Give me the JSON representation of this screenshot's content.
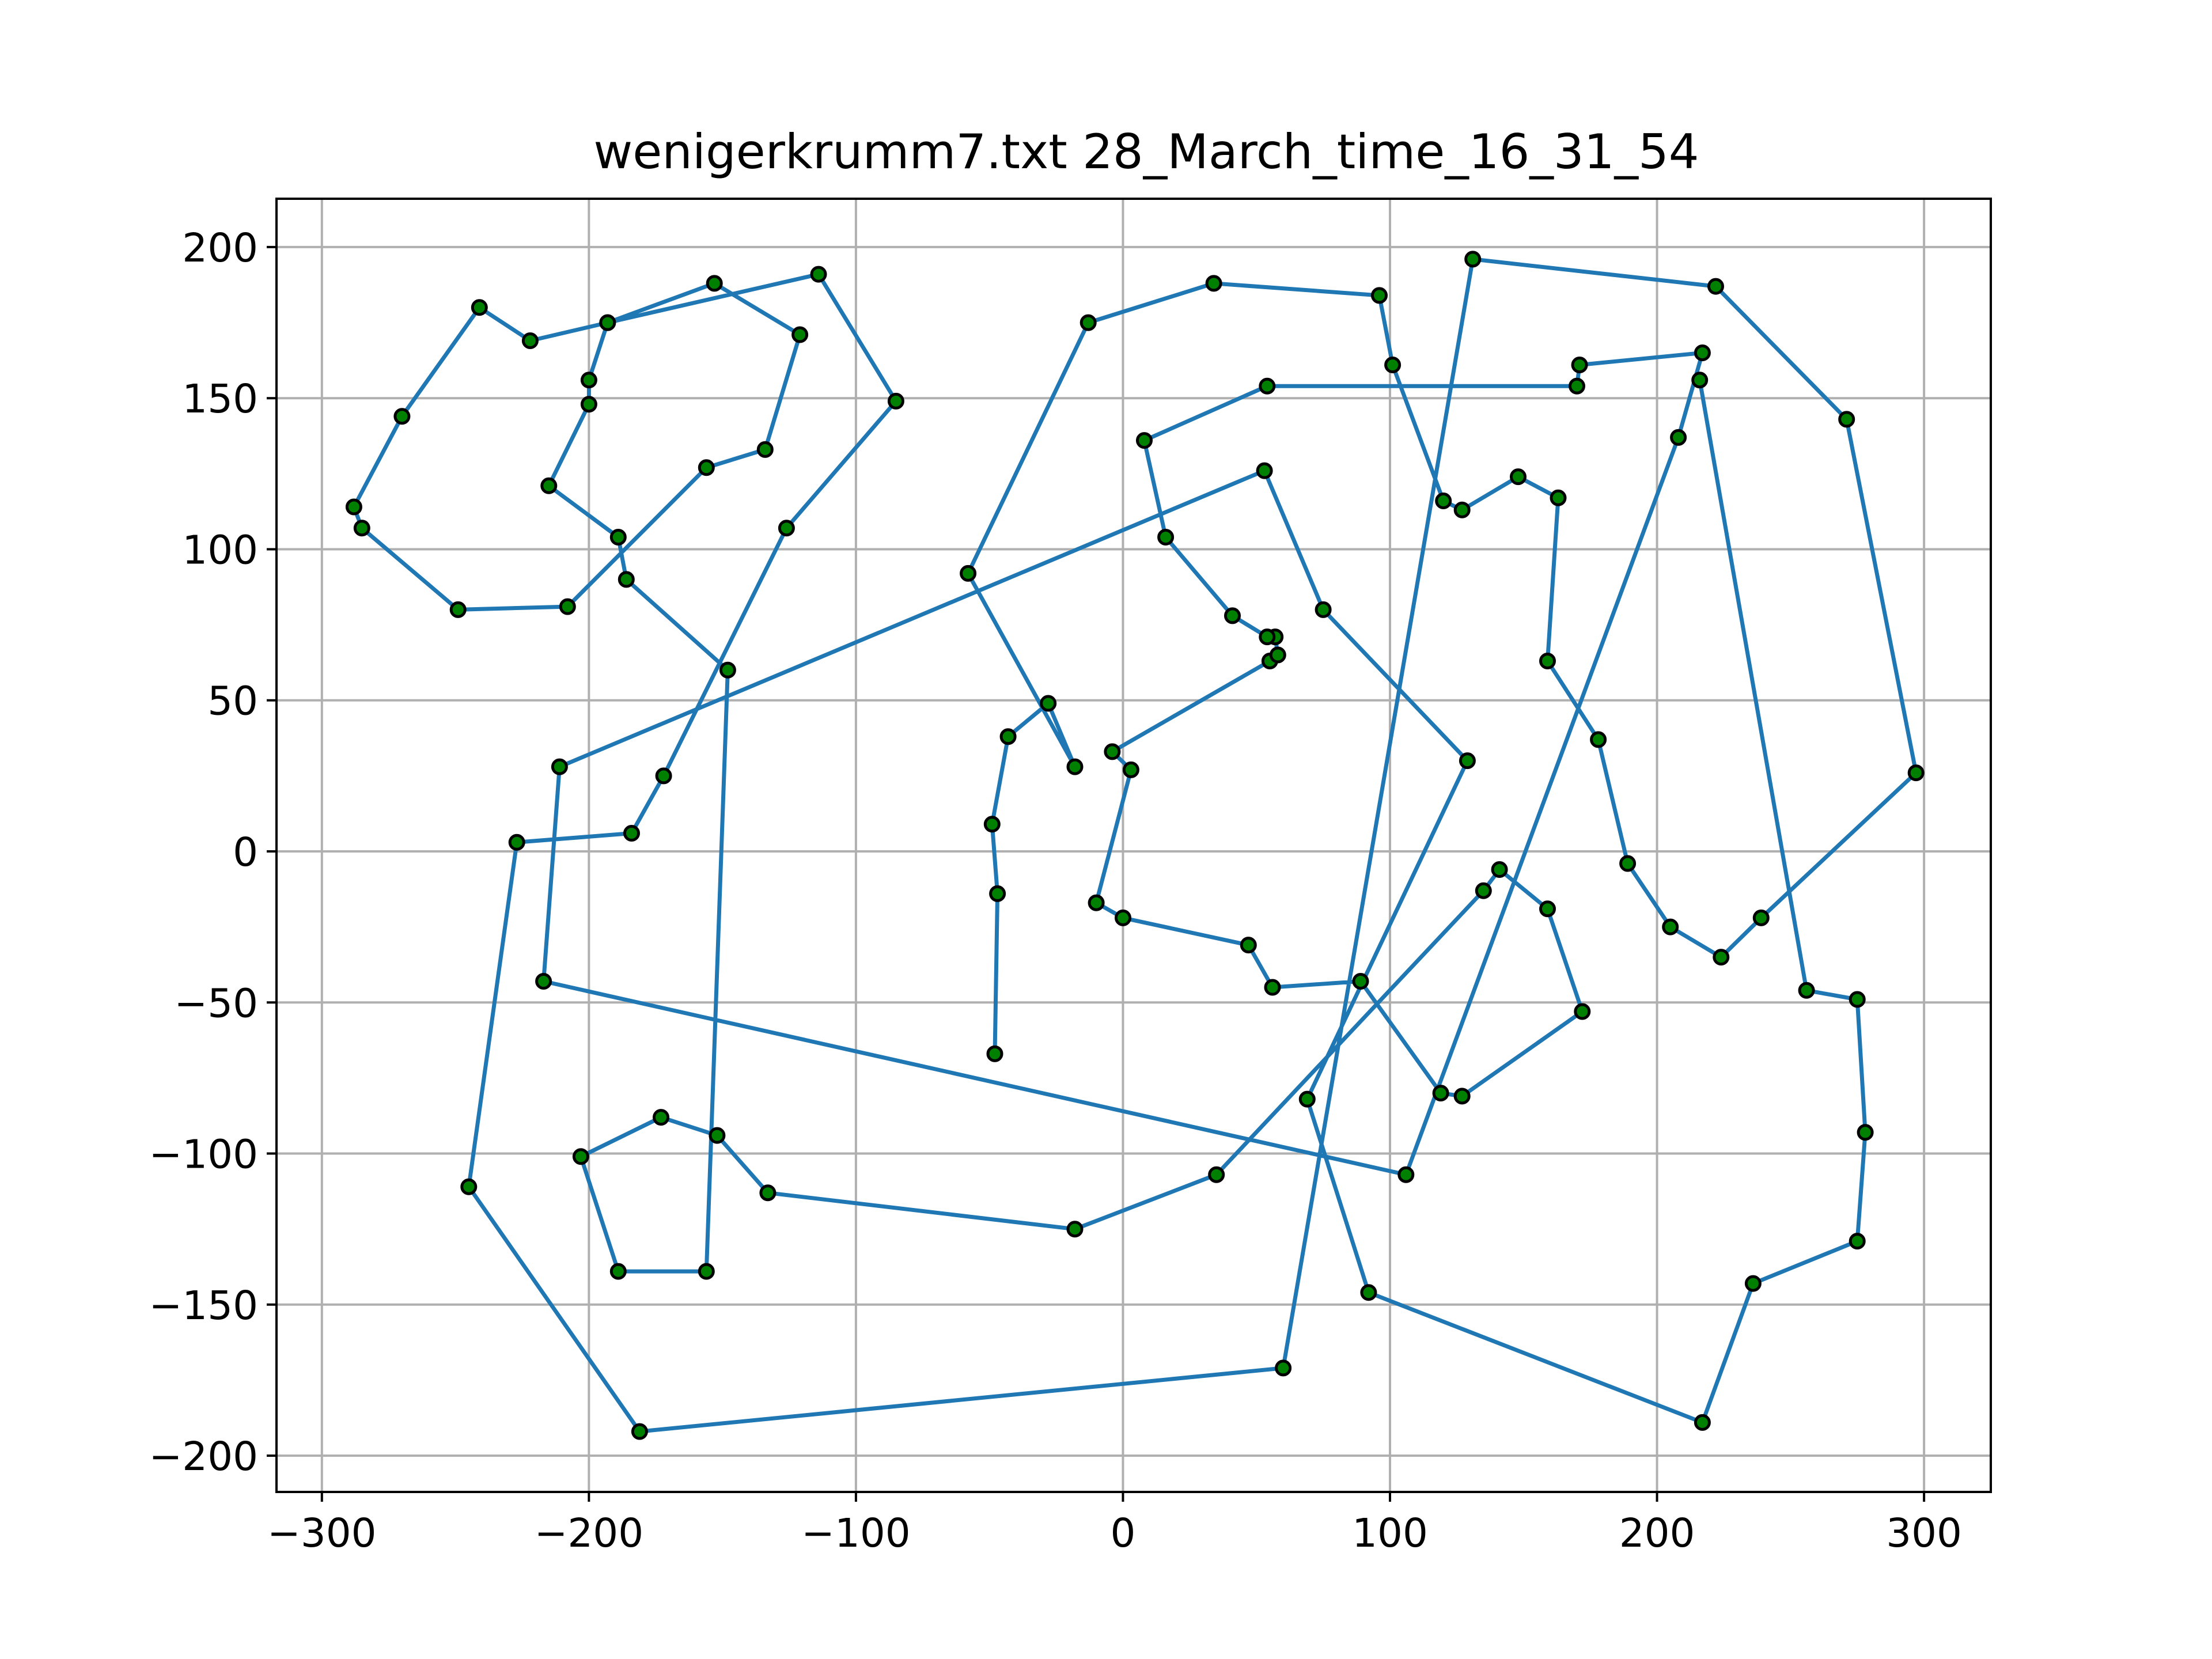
{
  "chart_data": {
    "type": "line",
    "title": "wenigerkrumm7.txt 28_March_time_16_31_54",
    "xlabel": "",
    "ylabel": "",
    "xlim": [
      -317,
      325
    ],
    "ylim": [
      -212,
      216
    ],
    "x_ticks": [
      -300,
      -200,
      -100,
      0,
      100,
      200,
      300
    ],
    "y_ticks": [
      -200,
      -150,
      -100,
      -50,
      0,
      50,
      100,
      150,
      200
    ],
    "x_tick_labels": [
      "−300",
      "−200",
      "−100",
      "0",
      "100",
      "200",
      "300"
    ],
    "y_tick_labels": [
      "−200",
      "−150",
      "−100",
      "−50",
      "0",
      "50",
      "100",
      "150",
      "200"
    ],
    "grid": true,
    "line_color": "#1f77b4",
    "marker_face_color": "#008000",
    "marker_edge_color": "#000000",
    "series": [
      {
        "points": [
          [
            -48,
            -67
          ],
          [
            -47,
            -14
          ],
          [
            -49,
            9
          ],
          [
            -43,
            38
          ],
          [
            -28,
            49
          ],
          [
            -18,
            28
          ],
          [
            -58,
            92
          ],
          [
            -13,
            175
          ],
          [
            34,
            188
          ],
          [
            96,
            184
          ],
          [
            101,
            161
          ],
          [
            120,
            116
          ],
          [
            127,
            113
          ],
          [
            148,
            124
          ],
          [
            163,
            117
          ],
          [
            159,
            63
          ],
          [
            178,
            37
          ],
          [
            189,
            -4
          ],
          [
            205,
            -25
          ],
          [
            224,
            -35
          ],
          [
            239,
            -22
          ],
          [
            297,
            26
          ],
          [
            271,
            143
          ],
          [
            222,
            187
          ],
          [
            131,
            196
          ],
          [
            60,
            -171
          ],
          [
            -181,
            -192
          ],
          [
            -245,
            -111
          ],
          [
            -227,
            3
          ],
          [
            -184,
            6
          ],
          [
            -172,
            25
          ],
          [
            -126,
            107
          ],
          [
            -85,
            149
          ],
          [
            -114,
            191
          ],
          [
            -193,
            175
          ],
          [
            -222,
            169
          ],
          [
            -241,
            180
          ],
          [
            -270,
            144
          ],
          [
            -288,
            114
          ],
          [
            -285,
            107
          ],
          [
            -249,
            80
          ],
          [
            -208,
            81
          ],
          [
            -156,
            127
          ],
          [
            -134,
            133
          ],
          [
            -121,
            171
          ],
          [
            -153,
            188
          ],
          [
            -193,
            175
          ],
          [
            -200,
            156
          ],
          [
            -200,
            148
          ],
          [
            -215,
            121
          ],
          [
            -189,
            104
          ],
          [
            -186,
            90
          ],
          [
            -148,
            60
          ],
          [
            -156,
            -139
          ],
          [
            -189,
            -139
          ],
          [
            -203,
            -101
          ],
          [
            -173,
            -88
          ],
          [
            -152,
            -94
          ],
          [
            -133,
            -113
          ],
          [
            -18,
            -125
          ],
          [
            35,
            -107
          ],
          [
            135,
            -13
          ],
          [
            141,
            -6
          ],
          [
            159,
            -19
          ],
          [
            172,
            -53
          ],
          [
            127,
            -81
          ],
          [
            119,
            -80
          ],
          [
            89,
            -43
          ],
          [
            56,
            -45
          ],
          [
            47,
            -31
          ],
          [
            0,
            -22
          ],
          [
            -10,
            -17
          ],
          [
            3,
            27
          ],
          [
            -4,
            33
          ],
          [
            55,
            63
          ],
          [
            58,
            65
          ],
          [
            57,
            71
          ],
          [
            54,
            71
          ],
          [
            41,
            78
          ],
          [
            16,
            104
          ],
          [
            8,
            136
          ],
          [
            54,
            154
          ],
          [
            170,
            154
          ],
          [
            171,
            161
          ],
          [
            217,
            165
          ],
          [
            208,
            137
          ],
          [
            106,
            -107
          ],
          [
            -217,
            -43
          ],
          [
            -211,
            28
          ],
          [
            53,
            126
          ],
          [
            75,
            80
          ],
          [
            129,
            30
          ],
          [
            69,
            -82
          ],
          [
            92,
            -146
          ],
          [
            217,
            -189
          ],
          [
            236,
            -143
          ],
          [
            275,
            -129
          ],
          [
            278,
            -93
          ],
          [
            275,
            -49
          ],
          [
            256,
            -46
          ],
          [
            216,
            156
          ]
        ]
      }
    ]
  }
}
